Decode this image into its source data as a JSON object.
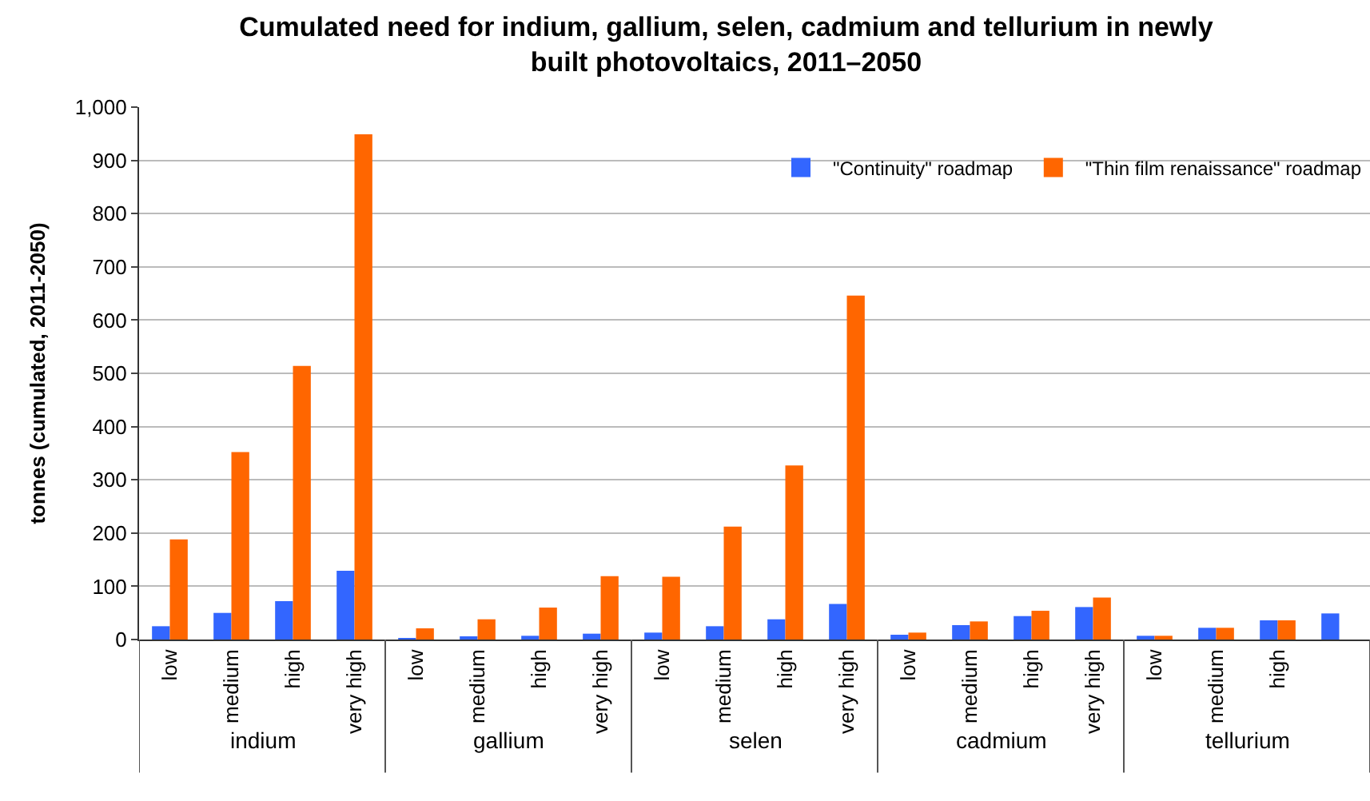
{
  "chart_data": {
    "type": "bar",
    "title": "Cumulated need for indium, gallium, selen, cadmium and tellurium in newly built photovoltaics, 2011–2050",
    "ylabel": "tonnes (cumulated, 2011-2050)",
    "categories": [
      "low",
      "medium",
      "high",
      "very high",
      "low",
      "medium",
      "high",
      "very high",
      "low",
      "medium",
      "high",
      "very high",
      "low",
      "medium",
      "high",
      "very high",
      "low",
      "medium",
      "high",
      null
    ],
    "series": [
      {
        "name": "\"Continuity\" roadmap",
        "color": "#3366ff",
        "values": [
          25,
          50,
          72,
          129,
          1,
          4,
          7,
          11,
          13,
          25,
          38,
          67,
          9,
          27,
          44,
          61,
          7,
          22,
          36,
          49
        ]
      },
      {
        "name": "\"Thin film renaissance\" roadmap",
        "color": "#ff6600",
        "values": [
          188,
          352,
          514,
          949,
          21,
          38,
          60,
          119,
          118,
          212,
          327,
          646,
          13,
          34,
          54,
          79,
          7,
          22,
          36,
          null
        ]
      }
    ],
    "annotations": [
      "indium",
      "gallium",
      "selen",
      "cadmium",
      "tellurium"
    ],
    "ylim": [
      0,
      1000
    ],
    "yticks": [
      0,
      100,
      200,
      300,
      400,
      500,
      600,
      700,
      800,
      900,
      {
        "value": 1000,
        "label": "1,000"
      }
    ],
    "grid": "y",
    "legend": "top right"
  }
}
